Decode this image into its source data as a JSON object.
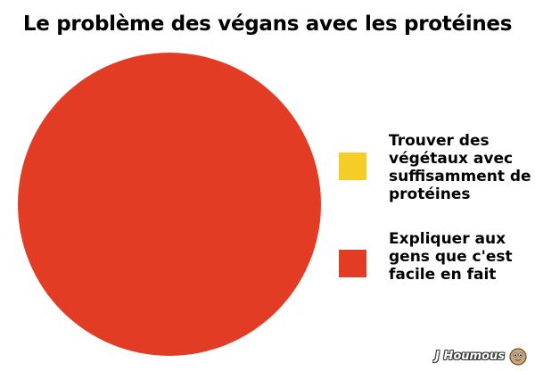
{
  "chart_data": {
    "type": "pie",
    "title": "Le problème des végans avec les protéines",
    "slices": [
      {
        "label": "Trouver des végétaux avec suffisamment de protéines",
        "value": 0,
        "color": "#f5cd27"
      },
      {
        "label": "Expliquer aux gens que c'est facile en fait",
        "value": 100,
        "color": "#e33c25"
      }
    ],
    "legend_position": "right"
  },
  "watermark": {
    "text": "J Houmous",
    "icon": "chickpea-mascot-icon"
  }
}
